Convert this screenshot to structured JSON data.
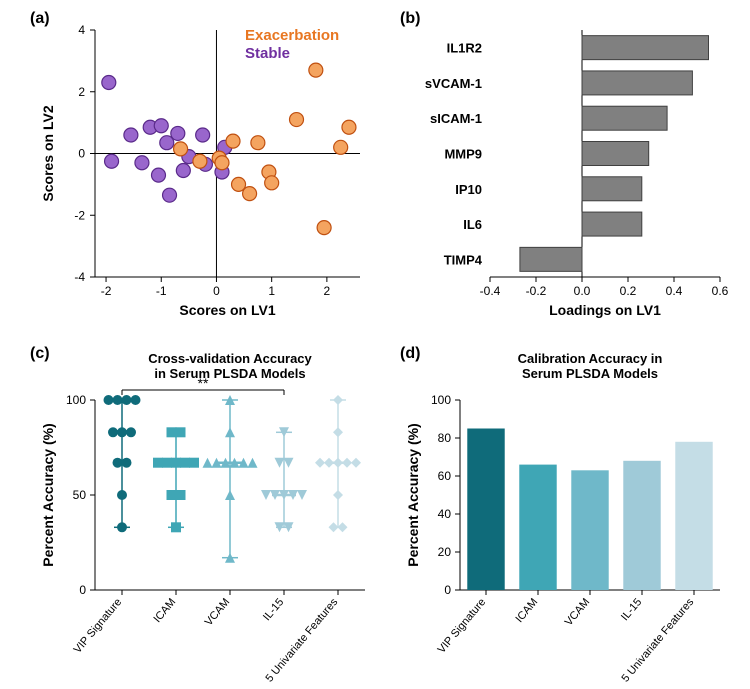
{
  "panel_a": {
    "label": "(a)",
    "type": "scatter",
    "xlabel": "Scores on LV1",
    "ylabel": "Scores on LV2",
    "xlim": [
      -2.2,
      2.6
    ],
    "ylim": [
      -4,
      4
    ],
    "xticks": [
      -2,
      -1,
      0,
      1,
      2
    ],
    "yticks": [
      -4,
      -2,
      0,
      2,
      4
    ],
    "label_fontsize": 14,
    "tick_fontsize": 12,
    "marker_radius": 7,
    "marker_stroke_width": 1.2,
    "legend": [
      {
        "label": "Exacerbation",
        "color": "#e87722"
      },
      {
        "label": "Stable",
        "color": "#7030a0"
      }
    ],
    "series": {
      "exacerbation": {
        "fill": "#f4a460",
        "stroke": "#c05010",
        "points": [
          [
            -0.65,
            0.15
          ],
          [
            -0.3,
            -0.25
          ],
          [
            0.05,
            -0.15
          ],
          [
            0.1,
            -0.3
          ],
          [
            0.3,
            0.4
          ],
          [
            0.4,
            -1.0
          ],
          [
            0.6,
            -1.3
          ],
          [
            0.75,
            0.35
          ],
          [
            0.95,
            -0.6
          ],
          [
            1.0,
            -0.95
          ],
          [
            1.45,
            1.1
          ],
          [
            1.8,
            2.7
          ],
          [
            1.95,
            -2.4
          ],
          [
            2.25,
            0.2
          ],
          [
            2.4,
            0.85
          ]
        ]
      },
      "stable": {
        "fill": "#9966cc",
        "stroke": "#5a2a8a",
        "points": [
          [
            -1.95,
            2.3
          ],
          [
            -1.9,
            -0.25
          ],
          [
            -1.55,
            0.6
          ],
          [
            -1.35,
            -0.3
          ],
          [
            -1.2,
            0.85
          ],
          [
            -1.0,
            0.9
          ],
          [
            -1.05,
            -0.7
          ],
          [
            -0.9,
            0.35
          ],
          [
            -0.85,
            -1.35
          ],
          [
            -0.7,
            0.65
          ],
          [
            -0.6,
            -0.55
          ],
          [
            -0.5,
            -0.1
          ],
          [
            -0.25,
            0.6
          ],
          [
            -0.2,
            -0.35
          ],
          [
            0.15,
            0.2
          ],
          [
            0.1,
            -0.6
          ]
        ]
      }
    }
  },
  "panel_b": {
    "label": "(b)",
    "type": "bar-horizontal",
    "xlabel": "Loadings on LV1",
    "xlim": [
      -0.4,
      0.6
    ],
    "xticks": [
      -0.4,
      -0.2,
      0.0,
      0.2,
      0.4,
      0.6
    ],
    "bar_fill": "#808080",
    "bar_stroke": "#404040",
    "bars": [
      {
        "label": "IL1R2",
        "value": 0.55
      },
      {
        "label": "sVCAM-1",
        "value": 0.48
      },
      {
        "label": "sICAM-1",
        "value": 0.37
      },
      {
        "label": "MMP9",
        "value": 0.29
      },
      {
        "label": "IP10",
        "value": 0.26
      },
      {
        "label": "IL6",
        "value": 0.26
      },
      {
        "label": "TIMP4",
        "value": -0.27
      }
    ]
  },
  "panel_c": {
    "label": "(c)",
    "type": "strip",
    "title": "Cross-validation Accuracy\nin Serum PLSDA Models",
    "ylabel": "Percent Accuracy (%)",
    "ylim": [
      0,
      100
    ],
    "yticks": [
      0,
      50,
      100
    ],
    "categories": [
      "VIP Signature",
      "ICAM",
      "VCAM",
      "IL-15",
      "5 Univariate Features"
    ],
    "colors": [
      "#0f6b7a",
      "#3fa6b5",
      "#6fb8c9",
      "#9fcad8",
      "#c4dde6"
    ],
    "marker_size": 5,
    "sig_bar": {
      "from": 0,
      "to": 3,
      "label": "**",
      "y": 108
    },
    "groups": [
      {
        "marker": "circle",
        "median": 83,
        "whisker_low": 33,
        "whisker_high": 100,
        "points": [
          100,
          100,
          100,
          100,
          83,
          83,
          83,
          67,
          67,
          50,
          33
        ]
      },
      {
        "marker": "square",
        "median": 67,
        "whisker_low": 33,
        "whisker_high": 83,
        "points": [
          83,
          83,
          67,
          67,
          67,
          67,
          67,
          50,
          50,
          33
        ]
      },
      {
        "marker": "triangle-up",
        "median": 67,
        "whisker_low": 17,
        "whisker_high": 100,
        "points": [
          100,
          83,
          67,
          67,
          67,
          67,
          67,
          67,
          50,
          17
        ]
      },
      {
        "marker": "triangle-down",
        "median": 50,
        "whisker_low": 33,
        "whisker_high": 83,
        "points": [
          83,
          67,
          67,
          50,
          50,
          50,
          50,
          50,
          33,
          33
        ]
      },
      {
        "marker": "diamond",
        "median": 67,
        "whisker_low": 33,
        "whisker_high": 100,
        "points": [
          100,
          83,
          67,
          67,
          67,
          67,
          67,
          50,
          33,
          33
        ]
      }
    ]
  },
  "panel_d": {
    "label": "(d)",
    "type": "bar",
    "title": "Calibration Accuracy in\nSerum PLSDA Models",
    "ylabel": "Percent Accuracy (%)",
    "ylim": [
      0,
      100
    ],
    "yticks": [
      0,
      20,
      40,
      60,
      80,
      100
    ],
    "categories": [
      "VIP Signature",
      "ICAM",
      "VCAM",
      "IL-15",
      "5 Univariate Features"
    ],
    "values": [
      85,
      66,
      63,
      68,
      78
    ],
    "colors": [
      "#0f6b7a",
      "#3fa6b5",
      "#6fb8c9",
      "#9fcad8",
      "#c4dde6"
    ],
    "bar_width": 0.72
  }
}
